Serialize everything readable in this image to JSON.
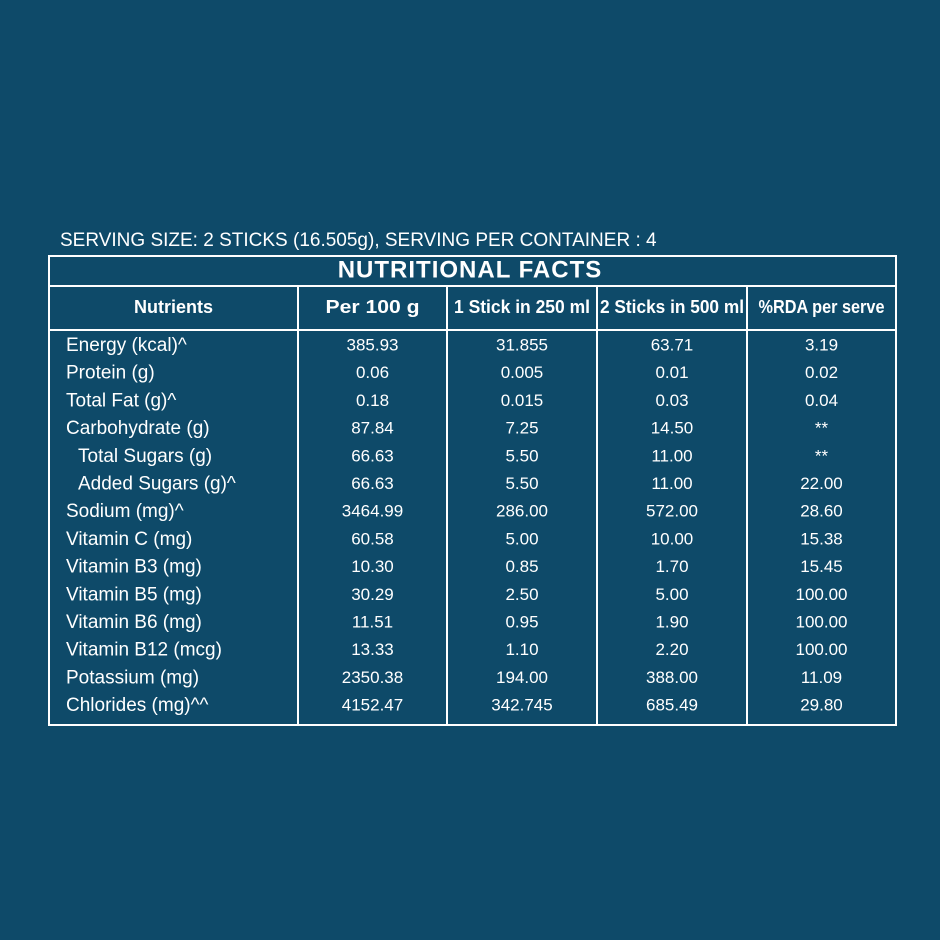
{
  "header": {
    "serving": "SERVING SIZE: 2 STICKS (16.505g), SERVING PER CONTAINER : 4"
  },
  "table": {
    "title": "NUTRITIONAL FACTS",
    "columns": [
      "Nutrients",
      "Per 100 g",
      "1 Stick in 250 ml",
      "2 Sticks in 500 ml",
      "%RDA per serve"
    ],
    "rows": [
      [
        "Energy (kcal)^",
        "385.93",
        "31.855",
        "63.71",
        "3.19"
      ],
      [
        "Protein (g)",
        "0.06",
        "0.005",
        "0.01",
        "0.02"
      ],
      [
        "Total Fat (g)^",
        "0.18",
        "0.015",
        "0.03",
        "0.04"
      ],
      [
        "Carbohydrate (g)",
        "87.84",
        "7.25",
        "14.50",
        "**"
      ],
      [
        "Total Sugars (g)",
        "66.63",
        "5.50",
        "11.00",
        "**"
      ],
      [
        "Added Sugars (g)^",
        "66.63",
        "5.50",
        "11.00",
        "22.00"
      ],
      [
        "Sodium (mg)^",
        "3464.99",
        "286.00",
        "572.00",
        "28.60"
      ],
      [
        "Vitamin C (mg)",
        "60.58",
        "5.00",
        "10.00",
        "15.38"
      ],
      [
        "Vitamin B3 (mg)",
        "10.30",
        "0.85",
        "1.70",
        "15.45"
      ],
      [
        "Vitamin B5 (mg)",
        "30.29",
        "2.50",
        "5.00",
        "100.00"
      ],
      [
        "Vitamin B6 (mg)",
        "11.51",
        "0.95",
        "1.90",
        "100.00"
      ],
      [
        "Vitamin B12 (mcg)",
        "13.33",
        "1.10",
        "2.20",
        "100.00"
      ],
      [
        "Potassium (mg)",
        "2350.38",
        "194.00",
        "388.00",
        "11.09"
      ],
      [
        "Chlorides (mg)^^",
        "4152.47",
        "342.745",
        "685.49",
        "29.80"
      ]
    ]
  }
}
